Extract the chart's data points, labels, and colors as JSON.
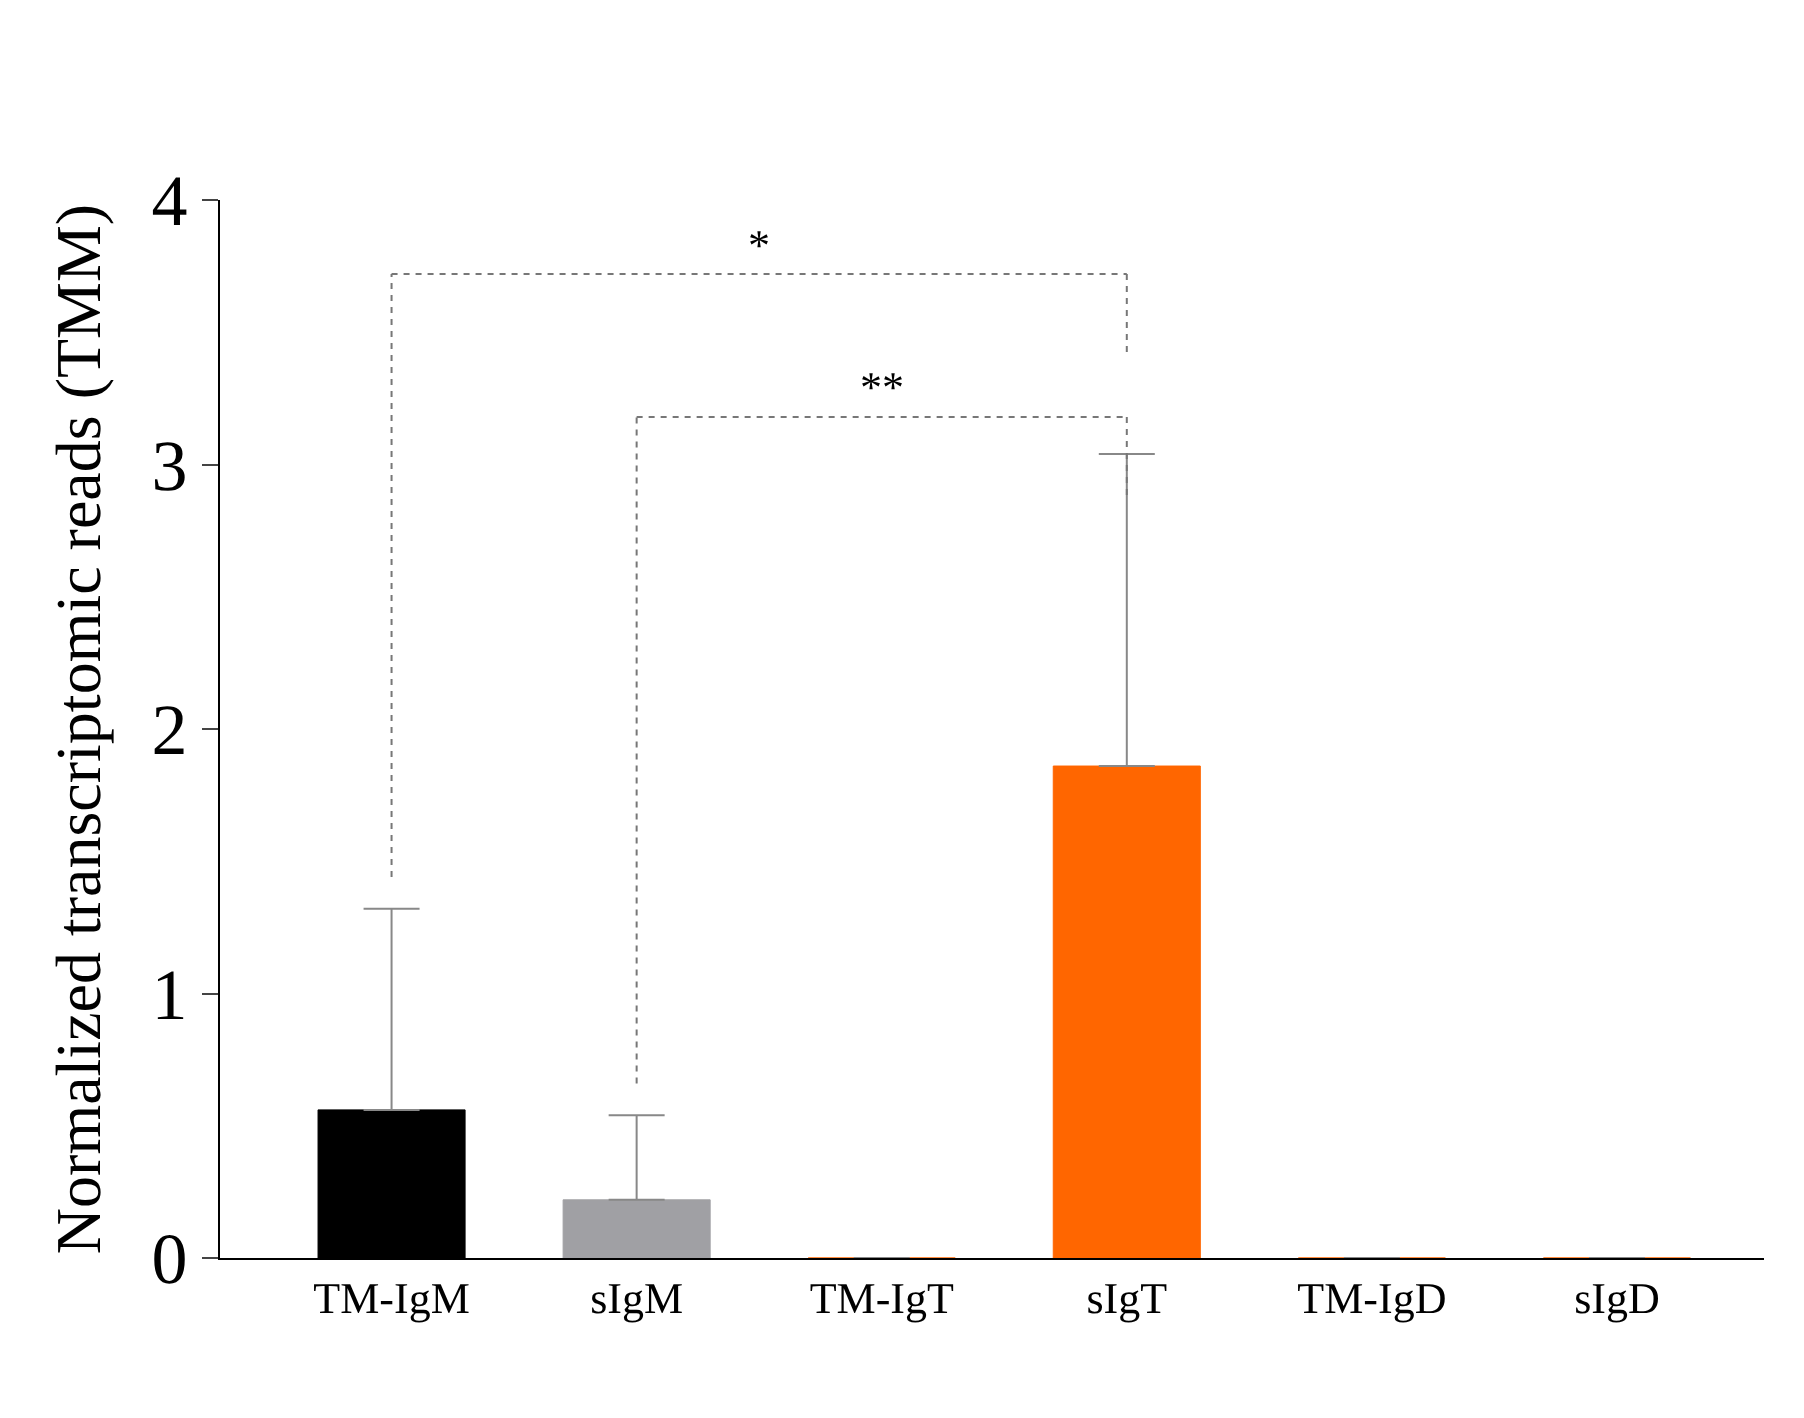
{
  "chart_data": {
    "type": "bar",
    "ylabel": "Normalized transcriptomic reads (TMM)",
    "categories": [
      "TM-IgM",
      "sIgM",
      "TM-IgT",
      "sIgT",
      "TM-IgD",
      "sIgD"
    ],
    "values": [
      0.56,
      0.22,
      0,
      1.86,
      0,
      0
    ],
    "colors": [
      "#000000",
      "#a0a0a4",
      "#ff6600",
      "#ff6600",
      "#ff6600",
      "#ff6600"
    ],
    "errors": [
      [
        0.56,
        1.32
      ],
      [
        0.22,
        0.54
      ],
      null,
      [
        1.86,
        3.04
      ],
      null,
      null
    ],
    "ylim": [
      0,
      4
    ],
    "yticks": [
      0,
      1,
      2,
      3,
      4
    ],
    "legend": false,
    "annotations": [
      "*",
      "**"
    ]
  }
}
